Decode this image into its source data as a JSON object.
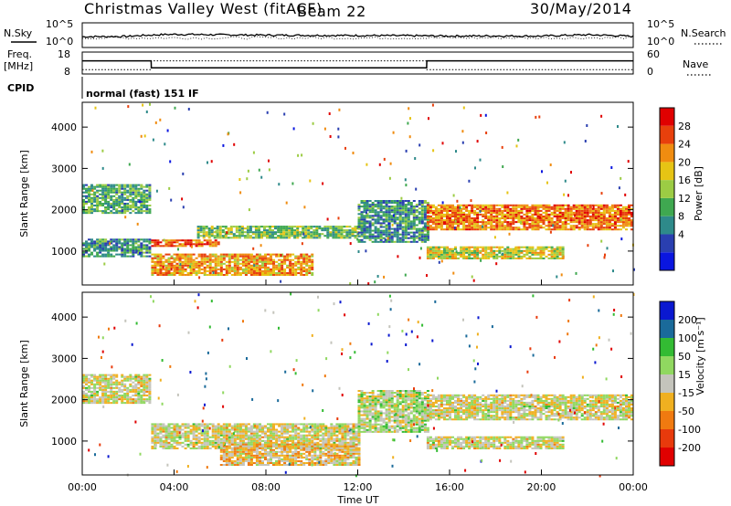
{
  "header": {
    "title": "Christmas Valley West (fitACF)",
    "beam": "Beam 22",
    "date": "30/May/2014"
  },
  "sky_panel": {
    "left_label": "N.Sky",
    "right_label": "N.Search",
    "left_ticks": [
      "10^5",
      "10^0"
    ],
    "right_ticks": [
      "10^5",
      "10^0"
    ]
  },
  "freq_panel": {
    "left_label_1": "Freq.",
    "left_label_2": "[MHz]",
    "right_label": "Nave",
    "left_ticks": [
      "18",
      "8"
    ],
    "right_ticks": [
      "60",
      "0"
    ]
  },
  "cpid": {
    "label": "CPID",
    "text": "normal (fast) 151 IF"
  },
  "power_scale": {
    "title": "Power [dB]",
    "ticks": [
      "28",
      "24",
      "20",
      "16",
      "12",
      "8",
      "4"
    ],
    "colors": [
      "#0a16e0",
      "#2a3fb0",
      "#2e8a8a",
      "#3fa850",
      "#9ccc44",
      "#e6c414",
      "#f08c10",
      "#e8400c",
      "#e00000"
    ]
  },
  "velocity_scale": {
    "title": "Velocity [m s⁻¹]",
    "ticks": [
      "200",
      "100",
      "50",
      "15",
      "-15",
      "-50",
      "-100",
      "-200"
    ],
    "colors": [
      "#0a18d0",
      "#1a6a9a",
      "#33bb33",
      "#90d860",
      "#c4c4bc",
      "#f0b020",
      "#f07a10",
      "#e83a0c",
      "#e00000"
    ]
  },
  "x_axis": {
    "ticks": [
      "00:00",
      "04:00",
      "08:00",
      "12:00",
      "16:00",
      "20:00",
      "00:00"
    ],
    "label": "Time UT"
  },
  "chart_data": [
    {
      "type": "line",
      "name": "sky-noise-panel",
      "x": [
        0,
        2,
        4,
        6,
        8,
        10,
        12,
        14,
        16,
        18,
        20,
        22,
        24
      ],
      "series": [
        {
          "values": [
            100,
            120,
            400,
            300,
            250,
            220,
            200,
            180,
            150,
            160,
            140,
            300,
            120
          ]
        }
      ]
    },
    {
      "type": "line",
      "name": "frequency-nave-panel",
      "x": [
        0,
        3,
        3.01,
        15,
        15.01,
        24
      ],
      "series": [
        {
          "name": "Freq",
          "values": [
            14,
            14,
            10.8,
            10.8,
            14,
            14
          ]
        },
        {
          "name": "Nave",
          "values": [
            10,
            10,
            14,
            14,
            10,
            10
          ]
        }
      ],
      "ylim": [
        8,
        18
      ]
    },
    {
      "type": "heatmap",
      "title": "",
      "xlabel": "Time UT",
      "ylabel": "Slant Range [km]",
      "xlim": [
        0,
        24
      ],
      "ylim": [
        180,
        4600
      ],
      "y_ticks": [
        1000,
        2000,
        3000,
        4000
      ],
      "colorbar": {
        "label": "Power [dB]",
        "range": [
          0,
          32
        ]
      },
      "bands": [
        {
          "t": [
            0,
            3
          ],
          "range_km": [
            1900,
            2600
          ],
          "value": 12
        },
        {
          "t": [
            0,
            3
          ],
          "range_km": [
            850,
            1300
          ],
          "value": 10
        },
        {
          "t": [
            3,
            6
          ],
          "range_km": [
            1100,
            1250
          ],
          "value": 26
        },
        {
          "t": [
            3,
            10
          ],
          "range_km": [
            400,
            900
          ],
          "value": 22
        },
        {
          "t": [
            5,
            12
          ],
          "range_km": [
            1300,
            1600
          ],
          "value": 14
        },
        {
          "t": [
            12,
            15
          ],
          "range_km": [
            1200,
            2200
          ],
          "value": 10
        },
        {
          "t": [
            15,
            24
          ],
          "range_km": [
            1500,
            2100
          ],
          "value": 24
        },
        {
          "t": [
            15,
            21
          ],
          "range_km": [
            800,
            1100
          ],
          "value": 18
        }
      ]
    },
    {
      "type": "heatmap",
      "title": "",
      "xlabel": "Time UT",
      "ylabel": "Slant Range [km]",
      "xlim": [
        0,
        24
      ],
      "ylim": [
        180,
        4600
      ],
      "y_ticks": [
        1000,
        2000,
        3000,
        4000
      ],
      "colorbar": {
        "label": "Velocity [m s⁻¹]",
        "range": [
          -250,
          250
        ]
      },
      "bands": [
        {
          "t": [
            0,
            3
          ],
          "range_km": [
            1900,
            2600
          ],
          "value": 0
        },
        {
          "t": [
            3,
            12
          ],
          "range_km": [
            800,
            1400
          ],
          "value": 0
        },
        {
          "t": [
            6,
            12
          ],
          "range_km": [
            400,
            900
          ],
          "value": -40
        },
        {
          "t": [
            12,
            15
          ],
          "range_km": [
            1200,
            2200
          ],
          "value": 30
        },
        {
          "t": [
            15,
            24
          ],
          "range_km": [
            1500,
            2100
          ],
          "value": 0
        },
        {
          "t": [
            15,
            21
          ],
          "range_km": [
            800,
            1100
          ],
          "value": 0
        }
      ]
    }
  ]
}
